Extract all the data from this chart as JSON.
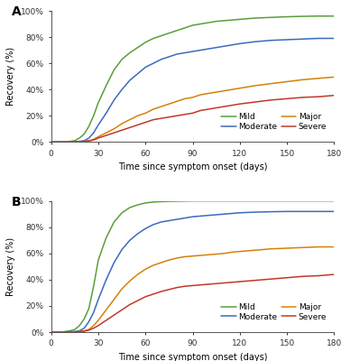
{
  "panel_A": {
    "label": "A",
    "mild": {
      "x": [
        0,
        3,
        6,
        9,
        12,
        15,
        18,
        21,
        24,
        27,
        30,
        35,
        40,
        45,
        50,
        55,
        60,
        65,
        70,
        75,
        80,
        85,
        90,
        95,
        100,
        105,
        110,
        115,
        120,
        130,
        140,
        150,
        160,
        170,
        180
      ],
      "y": [
        0,
        0,
        0,
        0,
        0.5,
        1,
        3,
        6,
        12,
        20,
        30,
        43,
        55,
        63,
        68,
        72,
        76,
        79,
        81,
        83,
        85,
        87,
        89,
        90,
        91,
        92,
        92.5,
        93,
        93.5,
        94.5,
        95,
        95.5,
        95.8,
        96,
        96
      ]
    },
    "moderate": {
      "x": [
        0,
        3,
        6,
        9,
        12,
        15,
        18,
        21,
        24,
        27,
        30,
        35,
        40,
        45,
        50,
        55,
        60,
        65,
        70,
        75,
        80,
        85,
        90,
        95,
        100,
        105,
        110,
        115,
        120,
        130,
        140,
        150,
        160,
        170,
        180
      ],
      "y": [
        0,
        0,
        0,
        0,
        0,
        0.2,
        0.5,
        1,
        3,
        7,
        13,
        22,
        32,
        40,
        47,
        52,
        57,
        60,
        63,
        65,
        67,
        68,
        69,
        70,
        71,
        72,
        73,
        74,
        75,
        76.5,
        77.5,
        78,
        78.5,
        79,
        79
      ]
    },
    "major": {
      "x": [
        0,
        3,
        6,
        9,
        12,
        15,
        18,
        21,
        24,
        27,
        30,
        35,
        40,
        45,
        50,
        55,
        60,
        65,
        70,
        75,
        80,
        85,
        90,
        95,
        100,
        105,
        110,
        115,
        120,
        130,
        140,
        150,
        160,
        170,
        180
      ],
      "y": [
        0,
        0,
        0,
        0,
        0,
        0,
        0.2,
        0.5,
        1,
        2,
        4,
        7,
        10,
        14,
        17,
        20,
        22,
        25,
        27,
        29,
        31,
        33,
        34,
        36,
        37,
        38,
        39,
        40,
        41,
        43,
        44.5,
        46,
        47.5,
        48.5,
        49.5
      ]
    },
    "severe": {
      "x": [
        0,
        3,
        6,
        9,
        12,
        15,
        18,
        21,
        24,
        27,
        30,
        35,
        40,
        45,
        50,
        55,
        60,
        65,
        70,
        75,
        80,
        85,
        90,
        95,
        100,
        105,
        110,
        115,
        120,
        130,
        140,
        150,
        160,
        170,
        180
      ],
      "y": [
        0,
        0,
        0,
        0,
        0,
        0,
        0.1,
        0.3,
        0.8,
        1.5,
        3,
        5,
        7,
        9,
        11,
        13,
        15,
        17,
        18,
        19,
        20,
        21,
        22,
        24,
        25,
        26,
        27,
        28,
        29,
        30.5,
        32,
        33,
        34,
        34.5,
        35.5
      ]
    }
  },
  "panel_B": {
    "label": "B",
    "mild": {
      "x": [
        0,
        3,
        6,
        9,
        12,
        15,
        18,
        21,
        24,
        27,
        30,
        35,
        40,
        45,
        50,
        55,
        60,
        65,
        70,
        75,
        80,
        85,
        90,
        95,
        100,
        105,
        110,
        115,
        120,
        130,
        140,
        150,
        160,
        170,
        180
      ],
      "y": [
        0,
        0,
        0,
        0.5,
        1,
        2,
        5,
        10,
        18,
        35,
        55,
        72,
        84,
        91,
        95,
        97,
        98.5,
        99.2,
        99.5,
        99.7,
        99.8,
        99.9,
        100,
        100,
        100,
        100,
        100,
        100,
        100,
        100,
        100,
        100,
        100,
        100,
        100
      ]
    },
    "moderate": {
      "x": [
        0,
        3,
        6,
        9,
        12,
        15,
        18,
        21,
        24,
        27,
        30,
        35,
        40,
        45,
        50,
        55,
        60,
        65,
        70,
        75,
        80,
        85,
        90,
        95,
        100,
        105,
        110,
        115,
        120,
        130,
        140,
        150,
        160,
        170,
        180
      ],
      "y": [
        0,
        0,
        0,
        0,
        0.2,
        0.5,
        1,
        3,
        8,
        15,
        25,
        40,
        53,
        63,
        70,
        75,
        79,
        82,
        84,
        85,
        86,
        87,
        88,
        88.5,
        89,
        89.5,
        90,
        90.5,
        91,
        91.5,
        91.8,
        92,
        92,
        92,
        92
      ]
    },
    "major": {
      "x": [
        0,
        3,
        6,
        9,
        12,
        15,
        18,
        21,
        24,
        27,
        30,
        35,
        40,
        45,
        50,
        55,
        60,
        65,
        70,
        75,
        80,
        85,
        90,
        95,
        100,
        105,
        110,
        115,
        120,
        130,
        140,
        150,
        160,
        170,
        180
      ],
      "y": [
        0,
        0,
        0,
        0,
        0,
        0.2,
        0.5,
        1,
        2,
        5,
        9,
        17,
        25,
        33,
        39,
        44,
        48,
        51,
        53,
        55,
        56.5,
        57.5,
        58,
        58.5,
        59,
        59.5,
        60,
        61,
        61.5,
        62.5,
        63.5,
        64,
        64.5,
        65,
        65
      ]
    },
    "severe": {
      "x": [
        0,
        3,
        6,
        9,
        12,
        15,
        18,
        21,
        24,
        27,
        30,
        35,
        40,
        45,
        50,
        55,
        60,
        65,
        70,
        75,
        80,
        85,
        90,
        95,
        100,
        105,
        110,
        115,
        120,
        130,
        140,
        150,
        160,
        170,
        180
      ],
      "y": [
        0,
        0,
        0,
        0,
        0,
        0.1,
        0.3,
        0.7,
        1.5,
        3,
        5,
        9,
        13,
        17,
        21,
        24,
        27,
        29,
        31,
        32.5,
        34,
        35,
        35.5,
        36,
        36.5,
        37,
        37.5,
        38,
        38.5,
        39.5,
        40.5,
        41.5,
        42.5,
        43,
        44
      ]
    }
  },
  "colors": {
    "mild": "#5a9e3a",
    "moderate": "#3a6bbf",
    "major": "#d4820a",
    "severe": "#c0392b"
  },
  "xlabel": "Time since symptom onset (days)",
  "ylabel": "Recovery (%)",
  "xticks": [
    0,
    30,
    60,
    90,
    120,
    150,
    180
  ],
  "ytick_labels": [
    "0%",
    "20%",
    "40%",
    "60%",
    "80%",
    "100%"
  ],
  "ytick_values": [
    0,
    20,
    40,
    60,
    80,
    100
  ],
  "legend_labels": [
    "Mild",
    "Moderate",
    "Major",
    "Severe"
  ],
  "legend_keys": [
    "mild",
    "moderate",
    "major",
    "severe"
  ],
  "xlim": [
    0,
    180
  ],
  "ylim": [
    0,
    100
  ]
}
